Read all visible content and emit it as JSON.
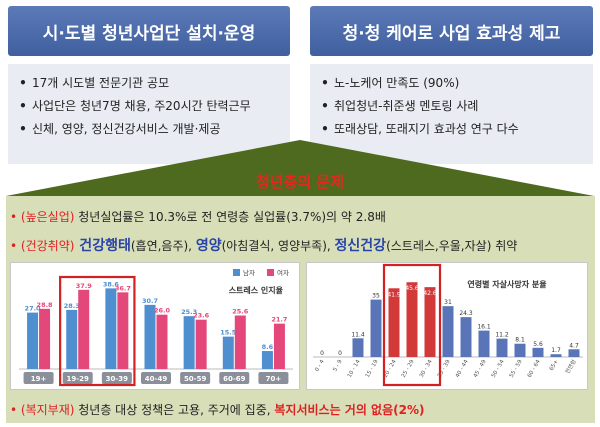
{
  "header_left": {
    "title": "시·도별 청년사업단 설치·운영"
  },
  "header_right": {
    "title": "청·청 케어로 사업 효과성 제고"
  },
  "panel_left": {
    "items": [
      "17개 시도별 전문기관 공모",
      "사업단은 청년7명 채용, 주20시간 탄력근무",
      "신체, 영양, 정신건강서비스 개발·제공"
    ]
  },
  "panel_right": {
    "items": [
      "노-노케어 만족도 (90%)",
      "취업청년-취준생 멘토링 사례",
      "또래상담, 또래지기 효과성 연구 다수"
    ]
  },
  "problem_title": "청년층의 문제",
  "line1": {
    "bullet": "•",
    "tag": "(높은실업)",
    "text": " 청년실업률은 10.3%로 전 연령층 실업률(3.7%)의 약 2.8배"
  },
  "line2": {
    "bullet": "•",
    "tag": "(건강취약)",
    "k1": " 건강행태",
    "d1": "(흡연,음주), ",
    "k2": "영양",
    "d2": "(아침결식, 영양부족), ",
    "k3": "정신건강",
    "d3": "(스트레스,우울,자살) ",
    "end": "취약"
  },
  "line3": {
    "bullet": "•",
    "tag": "(복지부재)",
    "text": " 청년층 대상 정책은 고용, 주거에 집중, ",
    "emph": "복지서비스는 거의 없음(2%)"
  },
  "chart_data": [
    {
      "type": "bar",
      "title": "스트레스 인지율",
      "categories": [
        "19+",
        "19-29",
        "30-39",
        "40-49",
        "50-59",
        "60-69",
        "70+"
      ],
      "series": [
        {
          "name": "남자",
          "values": [
            27.0,
            28.3,
            38.6,
            30.7,
            25.3,
            15.5,
            8.6
          ],
          "color": "#4f8fd0"
        },
        {
          "name": "여자",
          "values": [
            28.8,
            37.9,
            36.7,
            26.0,
            23.6,
            25.6,
            21.7
          ],
          "color": "#e4487a"
        }
      ],
      "ylim": [
        0,
        45
      ],
      "highlight": [
        "19-29",
        "30-39"
      ],
      "legend": "top-right"
    },
    {
      "type": "bar",
      "title": "연령별 자살사망자 분율",
      "categories": [
        "0 - 4",
        "5 - 9",
        "10 - 14",
        "15 - 19",
        "20 - 24",
        "25 - 29",
        "30 - 34",
        "35 - 39",
        "40 - 44",
        "45 - 49",
        "50 - 54",
        "55 - 59",
        "60 - 64",
        "65+",
        "전연령"
      ],
      "values": [
        0,
        0,
        11.4,
        35,
        41.9,
        45.6,
        42.6,
        31,
        24.3,
        16.1,
        11.2,
        8.1,
        5.6,
        1.7,
        4.7
      ],
      "value_labels": [
        "0",
        "0",
        "11.4",
        "35",
        "41.9",
        "45.6",
        "42.6",
        "31",
        "24.3",
        "16.1",
        "11.2",
        "8.1",
        "5.6",
        "1.7",
        "4.7"
      ],
      "colors": {
        "normal": "#5a74b8",
        "highlight": "#d23a3a"
      },
      "highlight": [
        "20 - 24",
        "25 - 29",
        "30 - 34"
      ],
      "ylim": [
        0,
        50
      ]
    }
  ]
}
